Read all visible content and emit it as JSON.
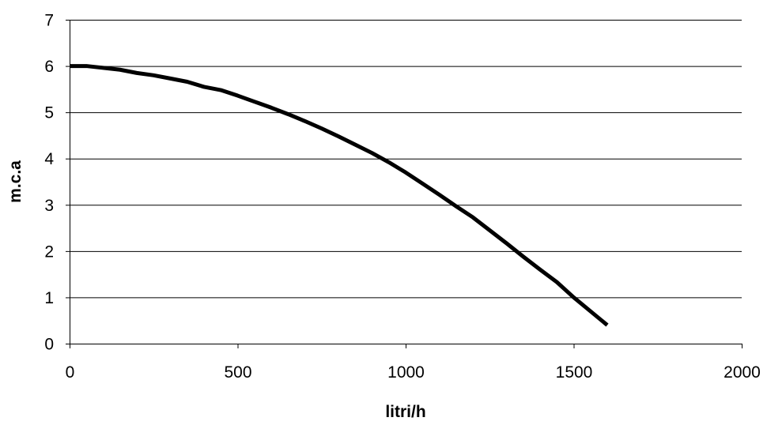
{
  "chart_data": {
    "type": "line",
    "title": "",
    "xlabel": "litri/h",
    "ylabel": "m.c.a",
    "xlim": [
      0,
      2000
    ],
    "ylim": [
      0,
      7
    ],
    "xticks": [
      0,
      500,
      1000,
      1500,
      2000
    ],
    "yticks": [
      0,
      1,
      2,
      3,
      4,
      5,
      6,
      7
    ],
    "grid": "horizontal",
    "legend": "none",
    "line_color": "#000000",
    "series": [
      {
        "x": [
          0,
          50,
          100,
          150,
          200,
          250,
          300,
          350,
          400,
          450,
          500,
          550,
          600,
          650,
          700,
          750,
          800,
          850,
          900,
          950,
          1000,
          1050,
          1100,
          1150,
          1200,
          1250,
          1300,
          1350,
          1400,
          1450,
          1500,
          1550,
          1600
        ],
        "y": [
          6.0,
          6.0,
          5.96,
          5.92,
          5.85,
          5.8,
          5.73,
          5.66,
          5.55,
          5.48,
          5.36,
          5.23,
          5.1,
          4.96,
          4.81,
          4.65,
          4.48,
          4.3,
          4.12,
          3.92,
          3.7,
          3.46,
          3.22,
          2.97,
          2.73,
          2.45,
          2.17,
          1.88,
          1.6,
          1.33,
          1.0,
          0.7,
          0.4
        ]
      }
    ]
  }
}
